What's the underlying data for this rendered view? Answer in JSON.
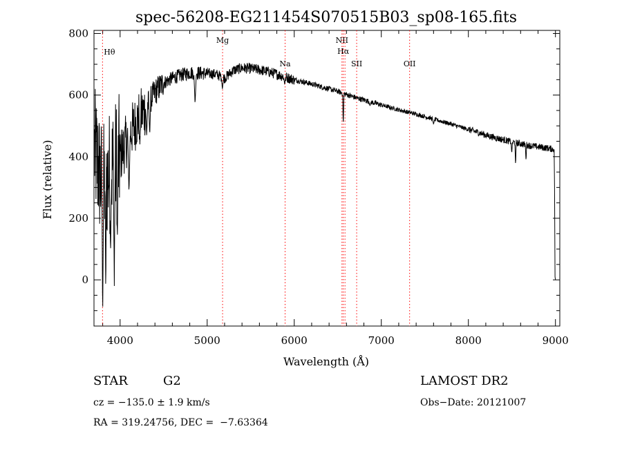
{
  "chart_data": {
    "type": "line",
    "title": "spec-56208-EG211454S070515B03_sp08-165.fits",
    "xlabel": "Wavelength (Å)",
    "ylabel": "Flux (relative)",
    "xlim": [
      3700,
      9050
    ],
    "ylim": [
      -150,
      810
    ],
    "xticks": [
      4000,
      5000,
      6000,
      7000,
      8000,
      9000
    ],
    "yticks": [
      0,
      200,
      400,
      600,
      800
    ],
    "grid": false,
    "line_color": "#000000",
    "marker_color": "#ff0000",
    "continuum_anchors": [
      [
        3700,
        430
      ],
      [
        3800,
        300
      ],
      [
        3900,
        360
      ],
      [
        4000,
        400
      ],
      [
        4100,
        470
      ],
      [
        4200,
        520
      ],
      [
        4300,
        560
      ],
      [
        4400,
        610
      ],
      [
        4500,
        640
      ],
      [
        4600,
        655
      ],
      [
        4700,
        665
      ],
      [
        4800,
        672
      ],
      [
        4900,
        672
      ],
      [
        5000,
        670
      ],
      [
        5100,
        668
      ],
      [
        5200,
        655
      ],
      [
        5300,
        680
      ],
      [
        5400,
        688
      ],
      [
        5500,
        686
      ],
      [
        5600,
        682
      ],
      [
        5700,
        676
      ],
      [
        5800,
        668
      ],
      [
        5900,
        658
      ],
      [
        6000,
        650
      ],
      [
        6100,
        643
      ],
      [
        6200,
        636
      ],
      [
        6300,
        628
      ],
      [
        6400,
        620
      ],
      [
        6500,
        612
      ],
      [
        6600,
        602
      ],
      [
        6700,
        592
      ],
      [
        6800,
        584
      ],
      [
        6900,
        576
      ],
      [
        7000,
        568
      ],
      [
        7100,
        560
      ],
      [
        7200,
        552
      ],
      [
        7300,
        545
      ],
      [
        7400,
        538
      ],
      [
        7500,
        530
      ],
      [
        7600,
        522
      ],
      [
        7700,
        514
      ],
      [
        7800,
        506
      ],
      [
        7900,
        497
      ],
      [
        8000,
        488
      ],
      [
        8100,
        480
      ],
      [
        8200,
        470
      ],
      [
        8300,
        462
      ],
      [
        8400,
        455
      ],
      [
        8500,
        448
      ],
      [
        8600,
        442
      ],
      [
        8700,
        436
      ],
      [
        8800,
        432
      ],
      [
        8900,
        428
      ],
      [
        8980,
        424
      ]
    ],
    "absorption_features": [
      [
        3800,
        -130,
        10
      ],
      [
        3835,
        -60,
        8
      ],
      [
        3890,
        80,
        12
      ],
      [
        3933,
        -20,
        10
      ],
      [
        3968,
        120,
        10
      ],
      [
        4102,
        280,
        14
      ],
      [
        4227,
        440,
        10
      ],
      [
        4305,
        470,
        12
      ],
      [
        4340,
        470,
        12
      ],
      [
        4861,
        570,
        14
      ],
      [
        5175,
        620,
        14
      ],
      [
        5890,
        635,
        12
      ],
      [
        6563,
        500,
        8
      ],
      [
        6870,
        565,
        12
      ],
      [
        7600,
        505,
        12
      ],
      [
        8498,
        410,
        8
      ],
      [
        8542,
        370,
        8
      ],
      [
        8662,
        385,
        8
      ]
    ],
    "reference_lines": [
      {
        "label": "Hθ",
        "x": 3798
      },
      {
        "label": "Mg",
        "x": 5177
      },
      {
        "label": "Na",
        "x": 5895
      },
      {
        "label": "NII",
        "x": 6548
      },
      {
        "label": "Hα",
        "x": 6563
      },
      {
        "label": "NII",
        "x": 6583
      },
      {
        "label": "SII",
        "x": 6717
      },
      {
        "label": "OII",
        "x": 7325
      }
    ]
  },
  "info": {
    "object_class": "STAR",
    "subclass": "G2",
    "survey": "LAMOST DR2",
    "redshift_text": "cz = −135.0 ± 1.9 km/s",
    "obs_date_text": "Obs−Date: 20121007",
    "coords_text": "RA = 319.24756, DEC =  −7.63364"
  }
}
